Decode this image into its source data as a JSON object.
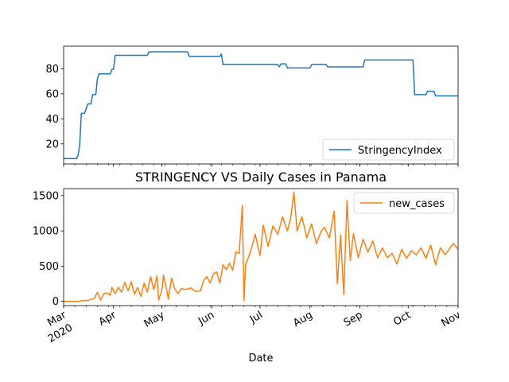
{
  "chart_data": [
    {
      "type": "line",
      "title": "",
      "xlabel": "",
      "ylabel": "",
      "ylim": [
        4,
        98
      ],
      "yticks": [
        20,
        40,
        60,
        80
      ],
      "grid": false,
      "legend": "lower-right",
      "series": [
        {
          "name": "StringencyIndex",
          "color": "#1f77b4",
          "points": [
            [
              "2020-03-01",
              8.3
            ],
            [
              "2020-03-09",
              8.3
            ],
            [
              "2020-03-10",
              11.1
            ],
            [
              "2020-03-11",
              19.4
            ],
            [
              "2020-03-12",
              44.4
            ],
            [
              "2020-03-14",
              44.4
            ],
            [
              "2020-03-15",
              48.1
            ],
            [
              "2020-03-16",
              51.9
            ],
            [
              "2020-03-18",
              51.9
            ],
            [
              "2020-03-19",
              59.3
            ],
            [
              "2020-03-21",
              59.3
            ],
            [
              "2020-03-22",
              72.2
            ],
            [
              "2020-03-23",
              75.9
            ],
            [
              "2020-03-30",
              75.9
            ],
            [
              "2020-03-31",
              79.6
            ],
            [
              "2020-04-01",
              79.6
            ],
            [
              "2020-04-02",
              90.7
            ],
            [
              "2020-04-22",
              90.7
            ],
            [
              "2020-04-23",
              93.5
            ],
            [
              "2020-05-17",
              93.5
            ],
            [
              "2020-05-18",
              89.8
            ],
            [
              "2020-06-06",
              89.8
            ],
            [
              "2020-06-07",
              91.7
            ],
            [
              "2020-06-08",
              83.3
            ],
            [
              "2020-07-12",
              83.3
            ],
            [
              "2020-07-13",
              81.5
            ],
            [
              "2020-07-14",
              83.9
            ],
            [
              "2020-07-17",
              83.9
            ],
            [
              "2020-07-18",
              80.6
            ],
            [
              "2020-08-01",
              80.6
            ],
            [
              "2020-08-02",
              83.3
            ],
            [
              "2020-08-11",
              83.3
            ],
            [
              "2020-08-12",
              81.5
            ],
            [
              "2020-09-03",
              81.5
            ],
            [
              "2020-09-04",
              87.0
            ],
            [
              "2020-10-04",
              87.0
            ],
            [
              "2020-10-05",
              59.3
            ],
            [
              "2020-10-12",
              59.3
            ],
            [
              "2020-10-13",
              62.0
            ],
            [
              "2020-10-17",
              62.0
            ],
            [
              "2020-10-18",
              58.3
            ],
            [
              "2020-11-01",
              58.3
            ]
          ]
        }
      ]
    },
    {
      "type": "line",
      "title": "STRINGENCY VS Daily Cases in Panama",
      "xlabel": "Date",
      "ylabel": "",
      "ylim": [
        -60,
        1600
      ],
      "yticks": [
        0,
        500,
        1000,
        1500
      ],
      "grid": false,
      "legend": "upper-right",
      "xlim": [
        "2020-03-01",
        "2020-11-01"
      ],
      "xticks": [
        {
          "date": "2020-03-01",
          "label": "Mar",
          "label2": "2020"
        },
        {
          "date": "2020-04-01",
          "label": "Apr"
        },
        {
          "date": "2020-05-01",
          "label": "May"
        },
        {
          "date": "2020-06-01",
          "label": "Jun"
        },
        {
          "date": "2020-07-01",
          "label": "Jul"
        },
        {
          "date": "2020-08-01",
          "label": "Aug"
        },
        {
          "date": "2020-09-01",
          "label": "Sep"
        },
        {
          "date": "2020-10-01",
          "label": "Oct"
        },
        {
          "date": "2020-11-01",
          "label": "Nov"
        }
      ],
      "series": [
        {
          "name": "new_cases",
          "color": "#ff7f0e",
          "points": [
            [
              "2020-03-01",
              0
            ],
            [
              "2020-03-09",
              0
            ],
            [
              "2020-03-10",
              1
            ],
            [
              "2020-03-12",
              8
            ],
            [
              "2020-03-14",
              14
            ],
            [
              "2020-03-16",
              10
            ],
            [
              "2020-03-18",
              30
            ],
            [
              "2020-03-20",
              40
            ],
            [
              "2020-03-22",
              130
            ],
            [
              "2020-03-24",
              20
            ],
            [
              "2020-03-26",
              110
            ],
            [
              "2020-03-28",
              120
            ],
            [
              "2020-03-30",
              90
            ],
            [
              "2020-03-31",
              200
            ],
            [
              "2020-04-02",
              110
            ],
            [
              "2020-04-04",
              200
            ],
            [
              "2020-04-06",
              130
            ],
            [
              "2020-04-08",
              270
            ],
            [
              "2020-04-10",
              150
            ],
            [
              "2020-04-12",
              280
            ],
            [
              "2020-04-14",
              100
            ],
            [
              "2020-04-16",
              200
            ],
            [
              "2020-04-18",
              70
            ],
            [
              "2020-04-20",
              260
            ],
            [
              "2020-04-22",
              130
            ],
            [
              "2020-04-24",
              350
            ],
            [
              "2020-04-26",
              170
            ],
            [
              "2020-04-28",
              360
            ],
            [
              "2020-04-29",
              20
            ],
            [
              "2020-05-01",
              150
            ],
            [
              "2020-05-02",
              370
            ],
            [
              "2020-05-04",
              170
            ],
            [
              "2020-05-05",
              30
            ],
            [
              "2020-05-07",
              330
            ],
            [
              "2020-05-09",
              180
            ],
            [
              "2020-05-11",
              110
            ],
            [
              "2020-05-13",
              180
            ],
            [
              "2020-05-16",
              170
            ],
            [
              "2020-05-19",
              190
            ],
            [
              "2020-05-22",
              140
            ],
            [
              "2020-05-25",
              150
            ],
            [
              "2020-05-27",
              300
            ],
            [
              "2020-05-29",
              350
            ],
            [
              "2020-05-31",
              260
            ],
            [
              "2020-06-02",
              390
            ],
            [
              "2020-06-04",
              420
            ],
            [
              "2020-06-06",
              260
            ],
            [
              "2020-06-08",
              520
            ],
            [
              "2020-06-10",
              450
            ],
            [
              "2020-06-12",
              540
            ],
            [
              "2020-06-14",
              440
            ],
            [
              "2020-06-16",
              700
            ],
            [
              "2020-06-18",
              680
            ],
            [
              "2020-06-20",
              1360
            ],
            [
              "2020-06-21",
              10
            ],
            [
              "2020-06-22",
              520
            ],
            [
              "2020-06-25",
              700
            ],
            [
              "2020-06-28",
              950
            ],
            [
              "2020-07-01",
              650
            ],
            [
              "2020-07-03",
              1080
            ],
            [
              "2020-07-06",
              780
            ],
            [
              "2020-07-09",
              1070
            ],
            [
              "2020-07-12",
              950
            ],
            [
              "2020-07-15",
              1200
            ],
            [
              "2020-07-18",
              1000
            ],
            [
              "2020-07-20",
              1180
            ],
            [
              "2020-07-22",
              1550
            ],
            [
              "2020-07-24",
              1000
            ],
            [
              "2020-07-27",
              1200
            ],
            [
              "2020-07-30",
              900
            ],
            [
              "2020-08-02",
              1100
            ],
            [
              "2020-08-05",
              820
            ],
            [
              "2020-08-08",
              1000
            ],
            [
              "2020-08-10",
              1050
            ],
            [
              "2020-08-13",
              900
            ],
            [
              "2020-08-16",
              1280
            ],
            [
              "2020-08-18",
              250
            ],
            [
              "2020-08-20",
              940
            ],
            [
              "2020-08-22",
              100
            ],
            [
              "2020-08-24",
              1430
            ],
            [
              "2020-08-26",
              580
            ],
            [
              "2020-08-28",
              960
            ],
            [
              "2020-08-31",
              620
            ],
            [
              "2020-09-03",
              880
            ],
            [
              "2020-09-06",
              700
            ],
            [
              "2020-09-09",
              860
            ],
            [
              "2020-09-12",
              620
            ],
            [
              "2020-09-15",
              760
            ],
            [
              "2020-09-18",
              620
            ],
            [
              "2020-09-21",
              680
            ],
            [
              "2020-09-24",
              530
            ],
            [
              "2020-09-27",
              740
            ],
            [
              "2020-09-30",
              610
            ],
            [
              "2020-10-03",
              720
            ],
            [
              "2020-10-06",
              660
            ],
            [
              "2020-10-09",
              760
            ],
            [
              "2020-10-12",
              610
            ],
            [
              "2020-10-15",
              800
            ],
            [
              "2020-10-18",
              520
            ],
            [
              "2020-10-21",
              760
            ],
            [
              "2020-10-24",
              660
            ],
            [
              "2020-10-27",
              760
            ],
            [
              "2020-10-29",
              820
            ],
            [
              "2020-11-01",
              740
            ]
          ]
        }
      ]
    }
  ]
}
